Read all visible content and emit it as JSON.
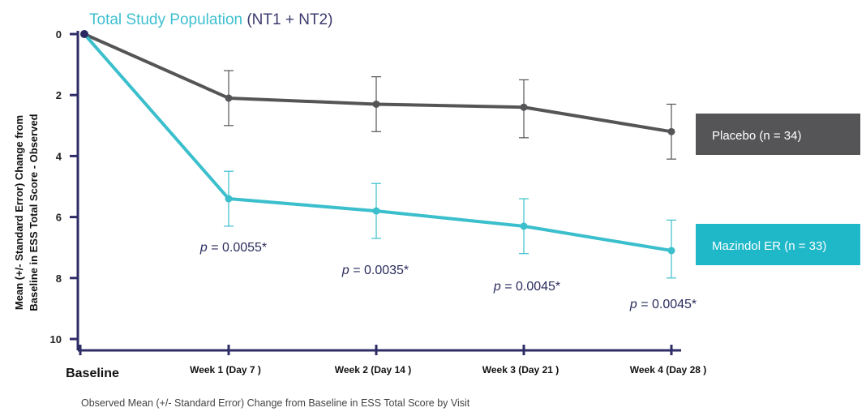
{
  "chart_data": {
    "type": "line",
    "title_parts": [
      {
        "text": "Total Study Population ",
        "color": "#3fbfcf"
      },
      {
        "text": "(NT1 + NT2)",
        "color": "#3b3a6e"
      }
    ],
    "ylabel_lines": [
      "Mean (+/- Standard Error) Change from",
      "Baseline in ESS Total Score - Observed"
    ],
    "caption": "Observed Mean (+/- Standard Error) Change from Baseline in ESS Total Score by Visit",
    "categories": [
      "Baseline",
      "Week 1 (Day 7 )",
      "Week 2 (Day 14 )",
      "Week 3 (Day 21 )",
      "Week 4 (Day 28 )"
    ],
    "yticks": [
      "0",
      "2",
      "4",
      "6",
      "8",
      "10"
    ],
    "ylim": [
      0,
      10
    ],
    "y_inverted": true,
    "series": [
      {
        "name": "Placebo (n = 34)",
        "color": "#555557",
        "values": [
          0,
          2.1,
          2.3,
          2.4,
          3.2
        ],
        "err_low": [
          null,
          1.2,
          1.4,
          1.5,
          2.3
        ],
        "err_high": [
          null,
          3.0,
          3.2,
          3.4,
          4.1
        ]
      },
      {
        "name": "Mazindol ER (n = 33)",
        "color": "#3bbfcc",
        "values": [
          0,
          5.4,
          5.8,
          6.3,
          7.1
        ],
        "err_low": [
          null,
          4.5,
          4.9,
          5.4,
          6.1
        ],
        "err_high": [
          null,
          6.3,
          6.7,
          7.2,
          8.0
        ]
      }
    ],
    "annotations": [
      {
        "p": "p",
        "rest": " = 0.0055*",
        "category": 1
      },
      {
        "p": "p",
        "rest": " = 0.0035*",
        "category": 2
      },
      {
        "p": "p",
        "rest": " = 0.0045*",
        "category": 3
      },
      {
        "p": "p",
        "rest": " = 0.0045*",
        "category": 4
      }
    ],
    "legend": [
      {
        "label": "Placebo (n = 34)",
        "color": "#555557"
      },
      {
        "label": "Mazindol ER (n = 33)",
        "color": "#1fb8c8"
      }
    ],
    "grid": false,
    "legend_position": "right"
  }
}
